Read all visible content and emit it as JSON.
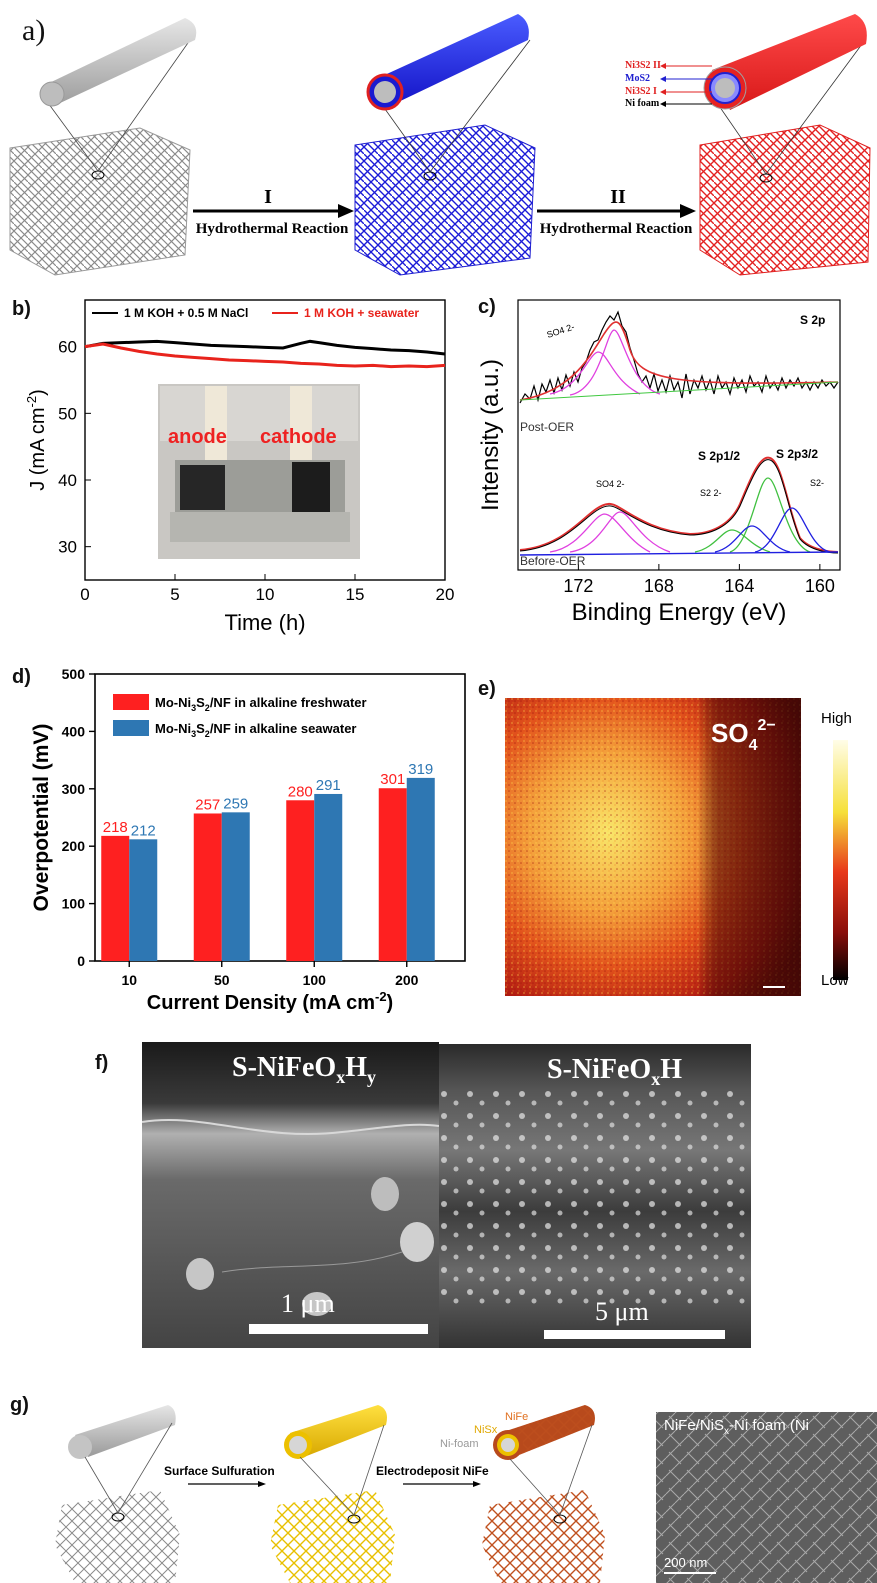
{
  "panels": {
    "a": {
      "label": "a)",
      "step1_roman": "I",
      "step1_text": "Hydrothermal Reaction",
      "step2_roman": "II",
      "step2_text": "Hydrothermal Reaction",
      "layers": [
        "Ni3S2 II",
        "MoS2",
        "Ni3S2 I",
        "Ni foam"
      ]
    },
    "b": {
      "label": "b)",
      "photo_text": [
        "anode",
        "cathode"
      ]
    },
    "c": {
      "label": "c)",
      "post_label": "Post-OER",
      "before_label": "Before-OER",
      "annotations": [
        "SO4 2-",
        "SO4 2-",
        "S2 2-",
        "S 2p1/2",
        "S 2p3/2",
        "S2-"
      ],
      "corner": "S 2p"
    },
    "d": {
      "label": "d)"
    },
    "e": {
      "label": "e)",
      "species": "SO",
      "species_sub": "4",
      "species_sup": "2−",
      "scale_high": "High",
      "scale_low": "Low"
    },
    "f": {
      "label": "f)",
      "left_title": "S-NiFeO",
      "left_title_sub1": "x",
      "left_title_mid": "H",
      "left_title_sub2": "y",
      "left_scale": "1 μm",
      "right_title": "S-NiFeO",
      "right_title_sub1": "x",
      "right_title_mid": "H",
      "right_scale": "5 μm"
    },
    "g": {
      "label": "g)",
      "step1": "Surface Sulfuration",
      "step2": "Electrodeposit NiFe",
      "layers": [
        "NiFe",
        "NiSx",
        "Ni-foam"
      ],
      "sem_title": "NiFe/NiS",
      "sem_title_sub": "x",
      "sem_title_rest": "-Ni foam (Ni",
      "sem_scale": "200 nm"
    }
  },
  "chart_data": [
    {
      "panel": "b",
      "type": "line",
      "xlabel": "Time (h)",
      "ylabel": "J (mA cm",
      "ylabel_sup": "-2",
      "ylabel_end": ")",
      "xlim": [
        0,
        20
      ],
      "ylim": [
        25,
        67
      ],
      "xticks": [
        0,
        5,
        10,
        15,
        20
      ],
      "yticks": [
        30,
        40,
        50,
        60
      ],
      "legend_placement": "top",
      "series": [
        {
          "name": "1 M KOH + 0.5 M NaCl",
          "color": "#000000",
          "x": [
            0,
            1,
            2,
            3,
            4,
            5,
            6,
            7,
            8,
            9,
            10,
            11,
            12,
            12.5,
            13,
            14,
            15,
            16,
            17,
            18,
            19,
            20
          ],
          "y": [
            60.0,
            60.5,
            60.6,
            60.7,
            60.8,
            60.6,
            60.4,
            60.2,
            60.1,
            60.0,
            59.9,
            59.8,
            60.5,
            60.8,
            60.6,
            60.2,
            59.9,
            59.7,
            59.5,
            59.4,
            59.2,
            58.9
          ]
        },
        {
          "name": "1 M KOH + seawater",
          "color": "#e8231c",
          "x": [
            0,
            1,
            2,
            3,
            4,
            5,
            6,
            7,
            8,
            9,
            10,
            11,
            12,
            13,
            14,
            15,
            16,
            17,
            18,
            19,
            20
          ],
          "y": [
            60.0,
            60.4,
            59.8,
            59.3,
            58.9,
            58.6,
            58.4,
            58.2,
            58.0,
            57.9,
            57.8,
            57.7,
            57.5,
            57.4,
            57.2,
            57.1,
            57.2,
            57.0,
            57.1,
            57.0,
            57.2
          ]
        }
      ]
    },
    {
      "panel": "c",
      "type": "line",
      "title": "S 2p",
      "xlabel": "Binding Energy (eV)",
      "ylabel": "Intensity (a.u.)",
      "xlim": [
        175,
        159
      ],
      "xticks": [
        172,
        168,
        164,
        160
      ],
      "reversed_x": true
    },
    {
      "panel": "d",
      "type": "bar",
      "xlabel": "Current Density (mA cm",
      "xlabel_sup": "-2",
      "xlabel_end": ")",
      "ylabel": "Overpotential (mV)",
      "ylim": [
        0,
        500
      ],
      "yticks": [
        0,
        100,
        200,
        300,
        400,
        500
      ],
      "categories": [
        "10",
        "50",
        "100",
        "200"
      ],
      "legend_placement": "top-left",
      "series": [
        {
          "name": "Mo-Ni",
          "name_sub1": "3",
          "name_mid": "S",
          "name_sub2": "2",
          "name_end": "/NF in alkaline freshwater",
          "color": "#fe2020",
          "values": [
            218,
            257,
            280,
            301
          ]
        },
        {
          "name": "Mo-Ni",
          "name_sub1": "3",
          "name_mid": "S",
          "name_sub2": "2",
          "name_end": "/NF in alkaline seawater",
          "color": "#2e77b3",
          "values": [
            212,
            259,
            291,
            319
          ]
        }
      ]
    }
  ]
}
